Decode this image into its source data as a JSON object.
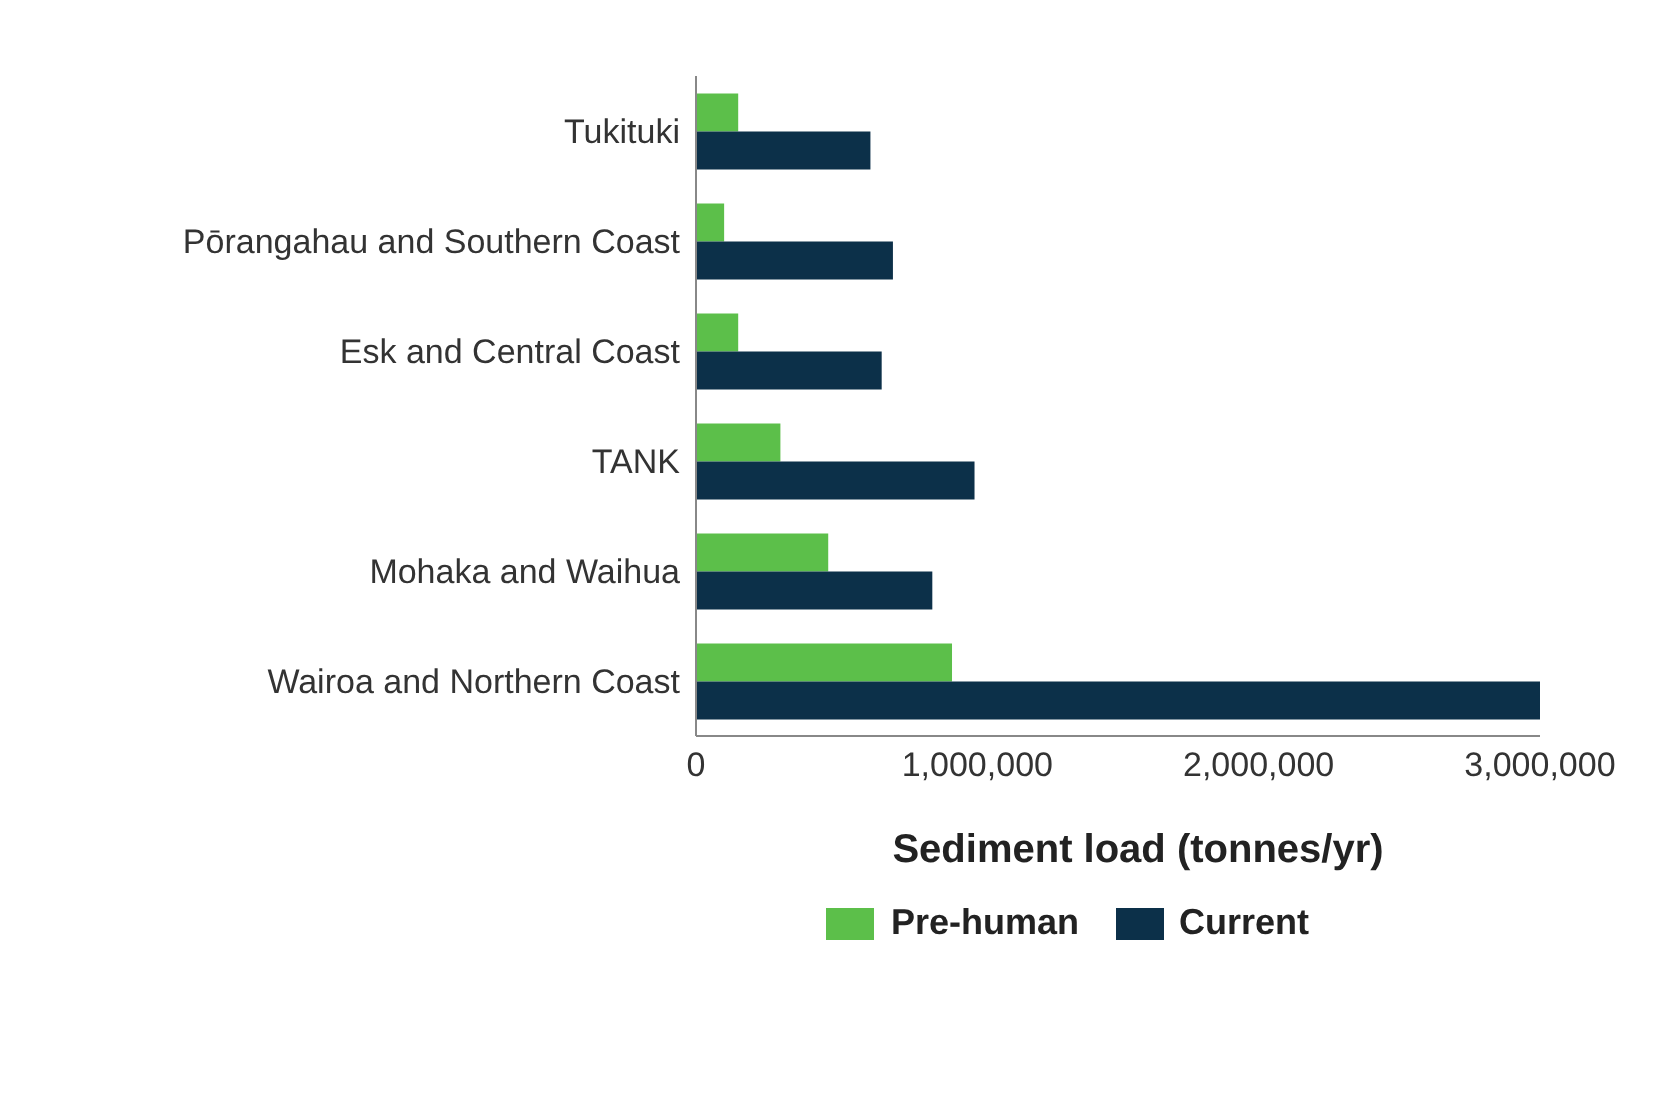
{
  "chart_data": {
    "type": "bar",
    "orientation": "horizontal",
    "xlabel": "Sediment load (tonnes/yr)",
    "categories": [
      "Tukituki",
      "Pōrangahau and Southern Coast",
      "Esk and Central Coast",
      "TANK",
      "Mohaka and Waihua",
      "Wairoa and Northern Coast"
    ],
    "series": [
      {
        "name": "Pre-human",
        "color": "#5cbf4a",
        "values": [
          150000,
          100000,
          150000,
          300000,
          470000,
          910000
        ]
      },
      {
        "name": "Current",
        "color": "#0c3049",
        "values": [
          620000,
          700000,
          660000,
          990000,
          840000,
          3000000
        ]
      }
    ],
    "xlim": [
      0,
      3000000
    ],
    "xticks": [
      {
        "value": 0,
        "label": "0"
      },
      {
        "value": 1000000,
        "label": "1,000,000"
      },
      {
        "value": 2000000,
        "label": "2,000,000"
      },
      {
        "value": 3000000,
        "label": "3,000,000"
      }
    ],
    "grid": false,
    "legend": "bottom"
  }
}
